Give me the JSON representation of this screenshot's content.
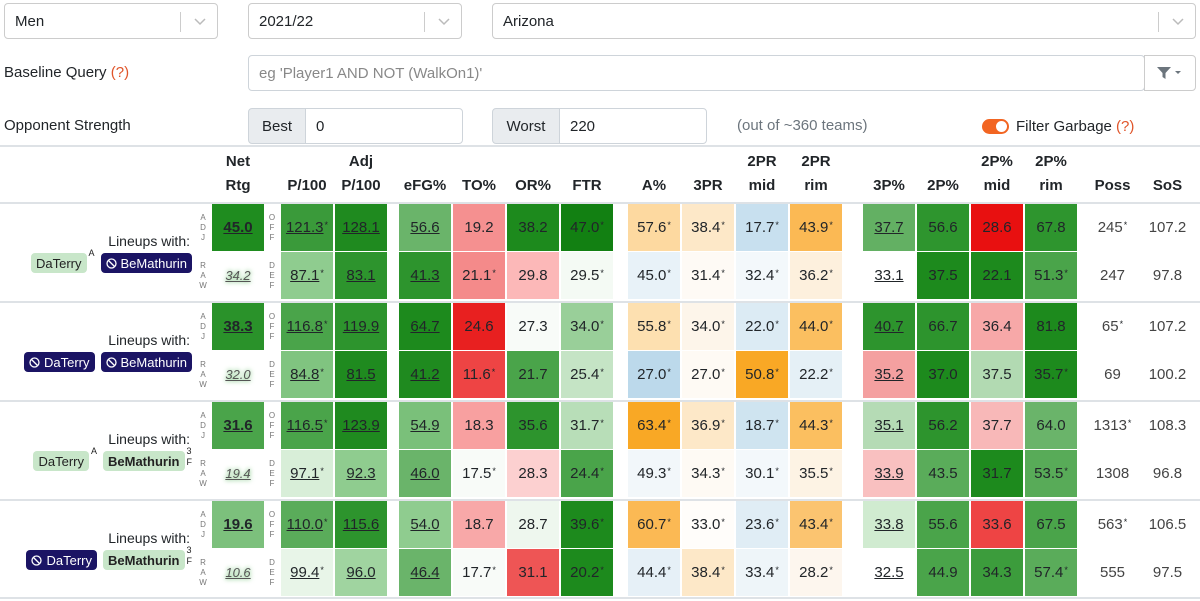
{
  "filters": {
    "gender": "Men",
    "season": "2021/22",
    "team": "Arizona"
  },
  "query": {
    "label": "Baseline Query",
    "help": "(?)",
    "placeholder": "eg 'Player1 AND NOT (WalkOn1)'"
  },
  "opponent": {
    "label": "Opponent Strength",
    "best_label": "Best",
    "best": "0",
    "worst_label": "Worst",
    "worst": "220",
    "note": "(out of ~360 teams)"
  },
  "garbage": {
    "label": "Filter Garbage",
    "help": "(?)",
    "on": true
  },
  "table": {
    "headers": [
      {
        "top": "Net",
        "bottom": "Rtg"
      },
      {
        "bottom": "P/100"
      },
      {
        "top": "Adj",
        "bottom": "P/100"
      },
      {
        "bottom": "eFG%"
      },
      {
        "bottom": "TO%"
      },
      {
        "bottom": "OR%"
      },
      {
        "bottom": "FTR"
      },
      {
        "bottom": "A%"
      },
      {
        "bottom": "3PR"
      },
      {
        "top": "2PR",
        "bottom": "mid"
      },
      {
        "top": "2PR",
        "bottom": "rim"
      },
      {
        "bottom": "3P%"
      },
      {
        "bottom": "2P%"
      },
      {
        "top": "2P%",
        "bottom": "mid"
      },
      {
        "top": "2P%",
        "bottom": "rim"
      },
      {
        "bottom": "Poss"
      },
      {
        "bottom": "SoS"
      }
    ],
    "groups": [
      {
        "caption": "Lineups with:",
        "players": [
          {
            "name": "DaTerry",
            "style": "on",
            "sup": "A"
          },
          {
            "name": "BeMathurin",
            "style": "off"
          }
        ],
        "rows": [
          {
            "kind": "ADJ",
            "side": "OFF",
            "cells": [
              {
                "t": "45.0",
                "bg": "#1f8c1f"
              },
              {
                "t": "121.3",
                "s": "*",
                "bg": "#3a9a3a"
              },
              {
                "t": "128.1",
                "bg": "#1f8a1f"
              },
              {
                "t": "56.6",
                "bg": "#6ab46a"
              },
              {
                "t": "19.2",
                "bg": "#f59090"
              },
              {
                "t": "38.2",
                "bg": "#1d8a1d"
              },
              {
                "t": "47.0",
                "s": "*",
                "bg": "#128012"
              },
              {
                "t": "57.6",
                "s": "*",
                "bg": "#fdd9a0"
              },
              {
                "t": "38.4",
                "s": "*",
                "bg": "#fde8c8"
              },
              {
                "t": "17.7",
                "s": "*",
                "bg": "#c8e0ef"
              },
              {
                "t": "43.9",
                "s": "*",
                "bg": "#fbb954"
              },
              {
                "t": "37.7",
                "bg": "#63b063"
              },
              {
                "t": "56.6",
                "bg": "#2e952e"
              },
              {
                "t": "28.6",
                "bg": "#e81010"
              },
              {
                "t": "67.8",
                "bg": "#2e952e"
              },
              {
                "t": "245",
                "s": "*"
              },
              {
                "t": "107.2"
              }
            ]
          },
          {
            "kind": "RAW",
            "side": "DEF",
            "cells": [
              {
                "t": "34.2"
              },
              {
                "t": "87.1",
                "s": "*",
                "bg": "#8fcc8f"
              },
              {
                "t": "83.1",
                "bg": "#2d942d"
              },
              {
                "t": "41.3",
                "bg": "#2d942d"
              },
              {
                "t": "21.1",
                "s": "*",
                "bg": "#f48a8a"
              },
              {
                "t": "29.8",
                "bg": "#fcb8b8"
              },
              {
                "t": "29.5",
                "s": "*",
                "bg": "#f4faf4"
              },
              {
                "t": "45.0",
                "s": "*",
                "bg": "#e8f2f8"
              },
              {
                "t": "31.4",
                "s": "*",
                "bg": "#fefaf5"
              },
              {
                "t": "32.4",
                "s": "*",
                "bg": "#f3f8fb"
              },
              {
                "t": "36.2",
                "s": "*",
                "bg": "#fdf0dd"
              },
              {
                "t": "33.1",
                "bg": "#ffffff"
              },
              {
                "t": "37.5",
                "bg": "#1d8a1d"
              },
              {
                "t": "22.1",
                "bg": "#1d8a1d"
              },
              {
                "t": "51.3",
                "s": "*",
                "bg": "#4aa44a"
              },
              {
                "t": "247"
              },
              {
                "t": "97.8"
              }
            ]
          }
        ]
      },
      {
        "caption": "Lineups with:",
        "players": [
          {
            "name": "DaTerry",
            "style": "off"
          },
          {
            "name": "BeMathurin",
            "style": "off"
          }
        ],
        "rows": [
          {
            "kind": "ADJ",
            "side": "OFF",
            "cells": [
              {
                "t": "38.3",
                "bg": "#2a922a"
              },
              {
                "t": "116.8",
                "s": "*",
                "bg": "#4aa44a"
              },
              {
                "t": "119.9",
                "bg": "#2d942d"
              },
              {
                "t": "64.7",
                "bg": "#1d8a1d"
              },
              {
                "t": "24.6",
                "bg": "#e82020"
              },
              {
                "t": "27.3",
                "bg": "#f8fbf8"
              },
              {
                "t": "34.0",
                "s": "*",
                "bg": "#99cf99"
              },
              {
                "t": "55.8",
                "s": "*",
                "bg": "#fde0b0"
              },
              {
                "t": "34.0",
                "s": "*",
                "bg": "#fdf5ea"
              },
              {
                "t": "22.0",
                "s": "*",
                "bg": "#dcebf4"
              },
              {
                "t": "44.0",
                "s": "*",
                "bg": "#fbbf60"
              },
              {
                "t": "40.7",
                "bg": "#2d942d"
              },
              {
                "t": "66.7",
                "bg": "#2d942d"
              },
              {
                "t": "36.4",
                "bg": "#f7a8a8"
              },
              {
                "t": "81.8",
                "bg": "#1d8a1d"
              },
              {
                "t": "65",
                "s": "*"
              },
              {
                "t": "107.2"
              }
            ]
          },
          {
            "kind": "RAW",
            "side": "DEF",
            "cells": [
              {
                "t": "32.0"
              },
              {
                "t": "84.8",
                "s": "*",
                "bg": "#80c480"
              },
              {
                "t": "81.5",
                "bg": "#1f8a1f"
              },
              {
                "t": "41.2",
                "bg": "#1f8a1f"
              },
              {
                "t": "11.6",
                "s": "*",
                "bg": "#ee4444"
              },
              {
                "t": "21.7",
                "bg": "#4aa44a"
              },
              {
                "t": "25.4",
                "s": "*",
                "bg": "#c5e4c5"
              },
              {
                "t": "27.0",
                "s": "*",
                "bg": "#bcd9eb"
              },
              {
                "t": "27.0",
                "s": "*",
                "bg": "#fefaf4"
              },
              {
                "t": "50.8",
                "s": "*",
                "bg": "#f9a825"
              },
              {
                "t": "22.2",
                "s": "*",
                "bg": "#e5f0f6"
              },
              {
                "t": "35.2",
                "bg": "#f4a0a0"
              },
              {
                "t": "37.0",
                "bg": "#1d8a1d"
              },
              {
                "t": "37.5",
                "bg": "#b2dab2"
              },
              {
                "t": "35.7",
                "s": "*",
                "bg": "#1d8a1d"
              },
              {
                "t": "69"
              },
              {
                "t": "100.2"
              }
            ]
          }
        ]
      },
      {
        "caption": "Lineups with:",
        "players": [
          {
            "name": "DaTerry",
            "style": "on",
            "sup": "A"
          },
          {
            "name": "BeMathurin",
            "style": "on",
            "bold": true,
            "sup": "3",
            "sub": "F"
          }
        ],
        "rows": [
          {
            "kind": "ADJ",
            "side": "OFF",
            "cells": [
              {
                "t": "31.6",
                "bg": "#4aa44a"
              },
              {
                "t": "116.5",
                "s": "*",
                "bg": "#4aa44a"
              },
              {
                "t": "123.9",
                "bg": "#1f8a1f"
              },
              {
                "t": "54.9",
                "bg": "#7ac07a"
              },
              {
                "t": "18.3",
                "bg": "#f8a0a0"
              },
              {
                "t": "35.6",
                "bg": "#2d942d"
              },
              {
                "t": "31.7",
                "s": "*",
                "bg": "#b8deb8"
              },
              {
                "t": "63.4",
                "s": "*",
                "bg": "#f9a825"
              },
              {
                "t": "36.9",
                "s": "*",
                "bg": "#fde8c8"
              },
              {
                "t": "18.7",
                "s": "*",
                "bg": "#cfe4f0"
              },
              {
                "t": "44.3",
                "s": "*",
                "bg": "#fbbf60"
              },
              {
                "t": "35.1",
                "bg": "#b5dbb5"
              },
              {
                "t": "56.2",
                "bg": "#2d942d"
              },
              {
                "t": "37.7",
                "bg": "#f8b8b8"
              },
              {
                "t": "64.0",
                "bg": "#6ab46a"
              },
              {
                "t": "1313",
                "s": "*"
              },
              {
                "t": "108.3"
              }
            ]
          },
          {
            "kind": "RAW",
            "side": "DEF",
            "cells": [
              {
                "t": "19.4"
              },
              {
                "t": "97.1",
                "s": "*",
                "bg": "#d8eed8"
              },
              {
                "t": "92.3",
                "bg": "#8fcc8f"
              },
              {
                "t": "46.0",
                "bg": "#6ab46a"
              },
              {
                "t": "17.5",
                "s": "*",
                "bg": "#f8fbf8"
              },
              {
                "t": "28.3",
                "bg": "#fcd0d0"
              },
              {
                "t": "24.4",
                "s": "*",
                "bg": "#4aa44a"
              },
              {
                "t": "49.3",
                "s": "*",
                "bg": "#f2f7fa"
              },
              {
                "t": "34.3",
                "s": "*",
                "bg": "#fefaf4"
              },
              {
                "t": "30.1",
                "s": "*",
                "bg": "#f3f8fb"
              },
              {
                "t": "35.5",
                "s": "*",
                "bg": "#fdf3e4"
              },
              {
                "t": "33.9",
                "bg": "#f9c0c0"
              },
              {
                "t": "43.5",
                "bg": "#5aac5a"
              },
              {
                "t": "31.7",
                "bg": "#1d8a1d"
              },
              {
                "t": "53.5",
                "s": "*",
                "bg": "#58ab58"
              },
              {
                "t": "1308"
              },
              {
                "t": "96.8"
              }
            ]
          }
        ]
      },
      {
        "caption": "Lineups with:",
        "players": [
          {
            "name": "DaTerry",
            "style": "off"
          },
          {
            "name": "BeMathurin",
            "style": "on",
            "bold": true,
            "sup": "3",
            "sub": "F"
          }
        ],
        "rows": [
          {
            "kind": "ADJ",
            "side": "OFF",
            "cells": [
              {
                "t": "19.6",
                "bg": "#7cc07c"
              },
              {
                "t": "110.0",
                "s": "*",
                "bg": "#5aac5a"
              },
              {
                "t": "115.6",
                "bg": "#2d942d"
              },
              {
                "t": "54.0",
                "bg": "#8fcc8f"
              },
              {
                "t": "18.7",
                "bg": "#f8a8a8"
              },
              {
                "t": "28.7",
                "bg": "#eef7ee"
              },
              {
                "t": "39.6",
                "s": "*",
                "bg": "#1d8a1d"
              },
              {
                "t": "60.7",
                "s": "*",
                "bg": "#fbb954"
              },
              {
                "t": "33.0",
                "s": "*",
                "bg": "#fffdfa"
              },
              {
                "t": "23.6",
                "s": "*",
                "bg": "#e0edf5"
              },
              {
                "t": "43.4",
                "s": "*",
                "bg": "#fbc470"
              },
              {
                "t": "33.8",
                "bg": "#d0ebd0"
              },
              {
                "t": "55.6",
                "bg": "#4aa44a"
              },
              {
                "t": "33.6",
                "bg": "#ee4444"
              },
              {
                "t": "67.5",
                "bg": "#4aa44a"
              },
              {
                "t": "563",
                "s": "*"
              },
              {
                "t": "106.5"
              }
            ]
          },
          {
            "kind": "RAW",
            "side": "DEF",
            "cells": [
              {
                "t": "10.6"
              },
              {
                "t": "99.4",
                "s": "*",
                "bg": "#e8f5e8"
              },
              {
                "t": "96.0",
                "bg": "#a0d4a0"
              },
              {
                "t": "46.4",
                "bg": "#6ab46a"
              },
              {
                "t": "17.7",
                "s": "*",
                "bg": "#f8fbf8"
              },
              {
                "t": "31.1",
                "bg": "#ee5555"
              },
              {
                "t": "20.2",
                "s": "*",
                "bg": "#1d8a1d"
              },
              {
                "t": "44.4",
                "s": "*",
                "bg": "#e6f0f7"
              },
              {
                "t": "38.4",
                "s": "*",
                "bg": "#fde8c8"
              },
              {
                "t": "33.4",
                "s": "*",
                "bg": "#eef5f9"
              },
              {
                "t": "28.2",
                "s": "*",
                "bg": "#fdf6ee"
              },
              {
                "t": "32.5",
                "bg": "#ffffff"
              },
              {
                "t": "44.9",
                "bg": "#4aa44a"
              },
              {
                "t": "34.3",
                "bg": "#3c9c3c"
              },
              {
                "t": "57.4",
                "s": "*",
                "bg": "#5aac5a"
              },
              {
                "t": "555"
              },
              {
                "t": "97.5"
              }
            ]
          }
        ]
      }
    ]
  }
}
